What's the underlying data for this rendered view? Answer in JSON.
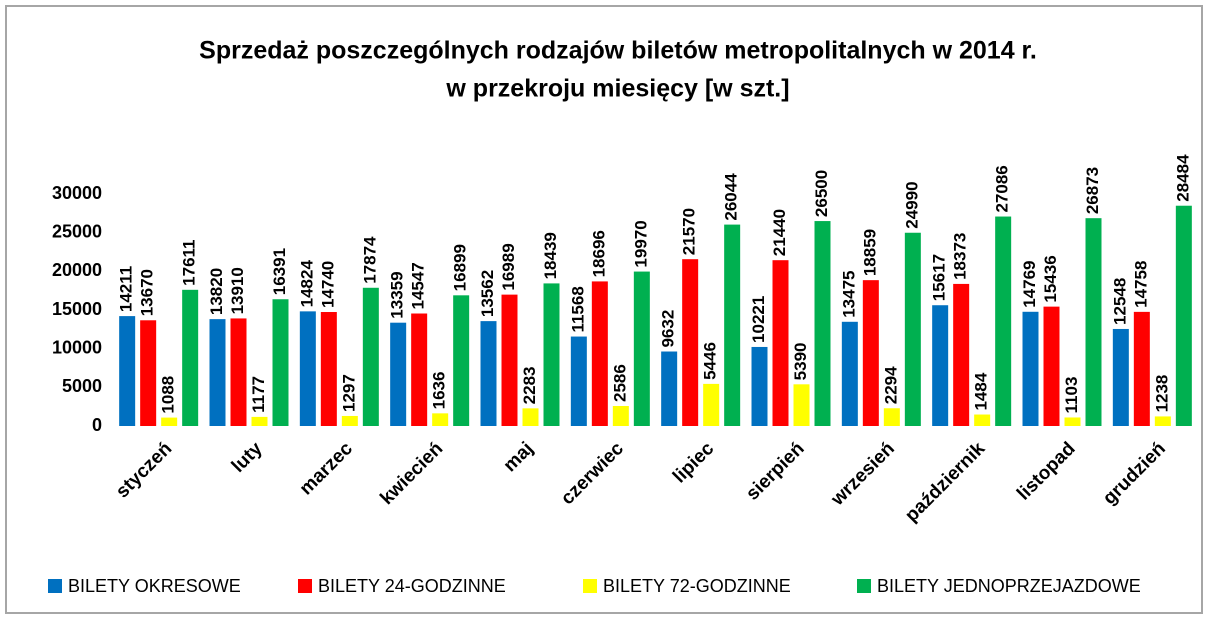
{
  "chart_data": {
    "type": "bar",
    "title": "Sprzedaż  poszczególnych  rodzajów biletów metropolitalnych w 2014 r.",
    "subtitle": "w przekroju miesięcy [w szt.]",
    "categories": [
      "styczeń",
      "luty",
      "marzec",
      "kwiecień",
      "maj",
      "czerwiec",
      "lipiec",
      "sierpień",
      "wrzesień",
      "październik",
      "listopad",
      "grudzień"
    ],
    "series": [
      {
        "name": "BILETY OKRESOWE",
        "color": "#0070c0",
        "values": [
          14211,
          13820,
          14824,
          13359,
          13562,
          11568,
          9632,
          10221,
          13475,
          15617,
          14769,
          12548
        ]
      },
      {
        "name": "BILETY 24-GODZINNE",
        "color": "#ff0000",
        "values": [
          13670,
          13910,
          14740,
          14547,
          16989,
          18696,
          21570,
          21440,
          18859,
          18373,
          15436,
          14758
        ]
      },
      {
        "name": "BILETY 72-GODZINNE",
        "color": "#ffff00",
        "values": [
          1088,
          1177,
          1297,
          1636,
          2283,
          2586,
          5446,
          5390,
          2294,
          1484,
          1103,
          1238
        ]
      },
      {
        "name": "BILETY JEDNOPRZEJAZDOWE",
        "color": "#00b050",
        "values": [
          17611,
          16391,
          17874,
          16899,
          18439,
          19970,
          26044,
          26500,
          24990,
          27086,
          26873,
          28484
        ]
      }
    ],
    "ylim": [
      0,
      30000
    ],
    "yticks": [
      0,
      5000,
      10000,
      15000,
      20000,
      25000,
      30000
    ],
    "grid": false,
    "legend": "bottom"
  }
}
